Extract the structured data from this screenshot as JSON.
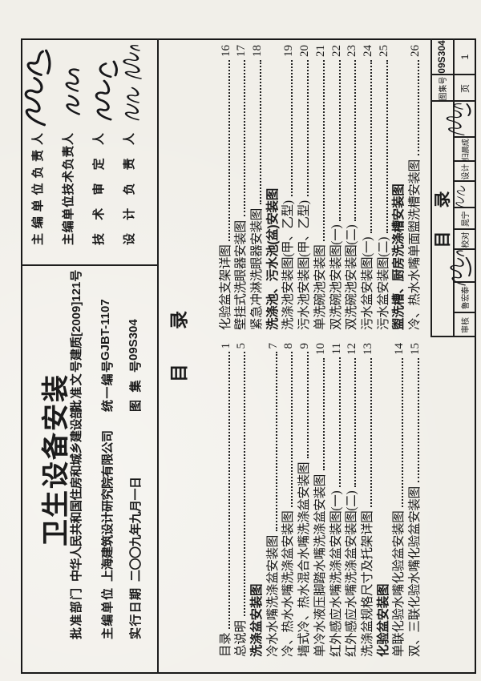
{
  "atlas": {
    "title": "卫生设备安装",
    "fields": [
      {
        "label": "批准部门",
        "value": "中华人民共和国住房和城乡建设部",
        "label2": "批准文号",
        "value2": "建质[2009]121号"
      },
      {
        "label": "主编单位",
        "value": "上海建筑设计研究院有限公司",
        "label2": "统一编号",
        "value2": "GJBT-1107"
      },
      {
        "label": "实行日期",
        "value": "二〇〇九年九月一日",
        "label2": "图集号",
        "value2": "09S304"
      }
    ]
  },
  "approvals": [
    {
      "label": "主编单位负责人",
      "signature": "手写签名"
    },
    {
      "label": "主编单位技术负责人",
      "signature": "手写签名"
    },
    {
      "label": "技术审定人",
      "signature": "手写签名"
    },
    {
      "label": "设计负责人",
      "signature": "手写签名(两人)"
    }
  ],
  "toc": {
    "heading": "目 录",
    "col1": [
      {
        "text": "目录",
        "page": "1"
      },
      {
        "text": "总说明",
        "page": "5"
      },
      {
        "text": "洗涤盆安装图",
        "header": true
      },
      {
        "text": "冷水水嘴洗涤盆安装图",
        "page": "7"
      },
      {
        "text": "冷、热水水嘴洗涤盆安装图",
        "page": "8"
      },
      {
        "text": "墙式冷、热水混合水嘴洗涤盆安装图",
        "page": "9"
      },
      {
        "text": "单冷水液压脚踏水嘴洗涤盆安装图",
        "page": "10"
      },
      {
        "text": "红外感应水嘴洗涤盆安装图(一)",
        "page": "11"
      },
      {
        "text": "红外感应水嘴洗涤盆安装图(二)",
        "page": "12"
      },
      {
        "text": "洗涤盆规格尺寸及托架详图",
        "page": "13"
      },
      {
        "text": "化验盆安装图",
        "header": true
      },
      {
        "text": "单联化验水嘴化验盆安装图",
        "page": "14"
      },
      {
        "text": "双、三联化验水嘴化验盆安装图",
        "page": "15"
      }
    ],
    "col2": [
      {
        "text": "化验盆支架详图",
        "page": "16"
      },
      {
        "text": "壁挂式洗眼器安装图",
        "page": "17"
      },
      {
        "text": "紧急冲淋洗眼器安装图",
        "page": "18"
      },
      {
        "text": "洗涤池、污水池(盆)安装图",
        "header": true
      },
      {
        "text": "洗涤池安装图(甲、乙型)",
        "page": "19"
      },
      {
        "text": "污水池安装图(甲、乙型)",
        "page": "20"
      },
      {
        "text": "单洗碗池安装图",
        "page": "21"
      },
      {
        "text": "双洗碗池安装图(一)",
        "page": "22"
      },
      {
        "text": "双洗碗池安装图(二)",
        "page": "23"
      },
      {
        "text": "污水盆安装图(一)",
        "page": "24"
      },
      {
        "text": "污水盆安装图(二)",
        "page": "25"
      },
      {
        "text": "盥洗槽、厨房洗涤槽安装图",
        "header": true
      },
      {
        "text": "冷、热水水嘴单面盥洗槽安装图",
        "page": "26"
      }
    ]
  },
  "titleblock": {
    "figure_title": "目 录",
    "review_label": "审核",
    "reviewer": "鲁宏泰",
    "check_label": "校对",
    "checker": "晁宁",
    "design_label": "设计",
    "designer": "归晨成",
    "atlas_no_label": "图集号",
    "atlas_no": "09S304",
    "page_label": "页",
    "page_no": "1"
  },
  "colors": {
    "paper": "#f1efe9",
    "ink": "#1b1b1b"
  }
}
